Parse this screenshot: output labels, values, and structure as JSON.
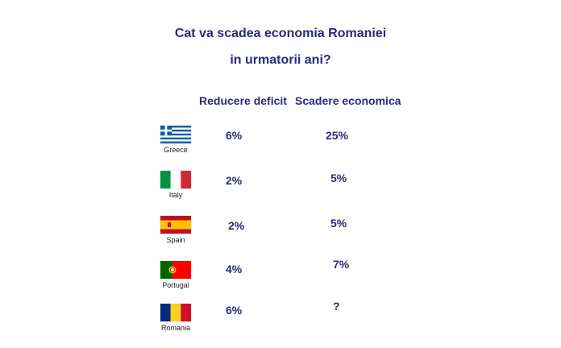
{
  "chart_data": {
    "type": "table",
    "title_line1": "Cat va scadea economia Romaniei",
    "title_line2": "in urmatorii ani?",
    "columns": [
      "Reducere deficit",
      "Scadere economica"
    ],
    "rows": [
      {
        "country": "Greece",
        "deficit": "6%",
        "scadere": "25%"
      },
      {
        "country": "Italy",
        "deficit": "2%",
        "scadere": "5%"
      },
      {
        "country": "Spain",
        "deficit": "2%",
        "scadere": "5%"
      },
      {
        "country": "Portugal",
        "deficit": "4%",
        "scadere": "7%"
      },
      {
        "country": "Romania",
        "deficit": "6%",
        "scadere": "?"
      }
    ]
  },
  "colors": {
    "text": "#2a2a7a",
    "greece_blue": "#0d5eaf",
    "italy_green": "#009246",
    "italy_red": "#ce2b37",
    "spain_red": "#c60b1e",
    "spain_yellow": "#ffc400",
    "portugal_green": "#006600",
    "portugal_red": "#ff0000",
    "romania_blue": "#002b7f",
    "romania_yellow": "#fcd116",
    "romania_red": "#ce1126"
  },
  "icons": {
    "Greece": "greece-flag-icon",
    "Italy": "italy-flag-icon",
    "Spain": "spain-flag-icon",
    "Portugal": "portugal-flag-icon",
    "Romania": "romania-flag-icon"
  }
}
